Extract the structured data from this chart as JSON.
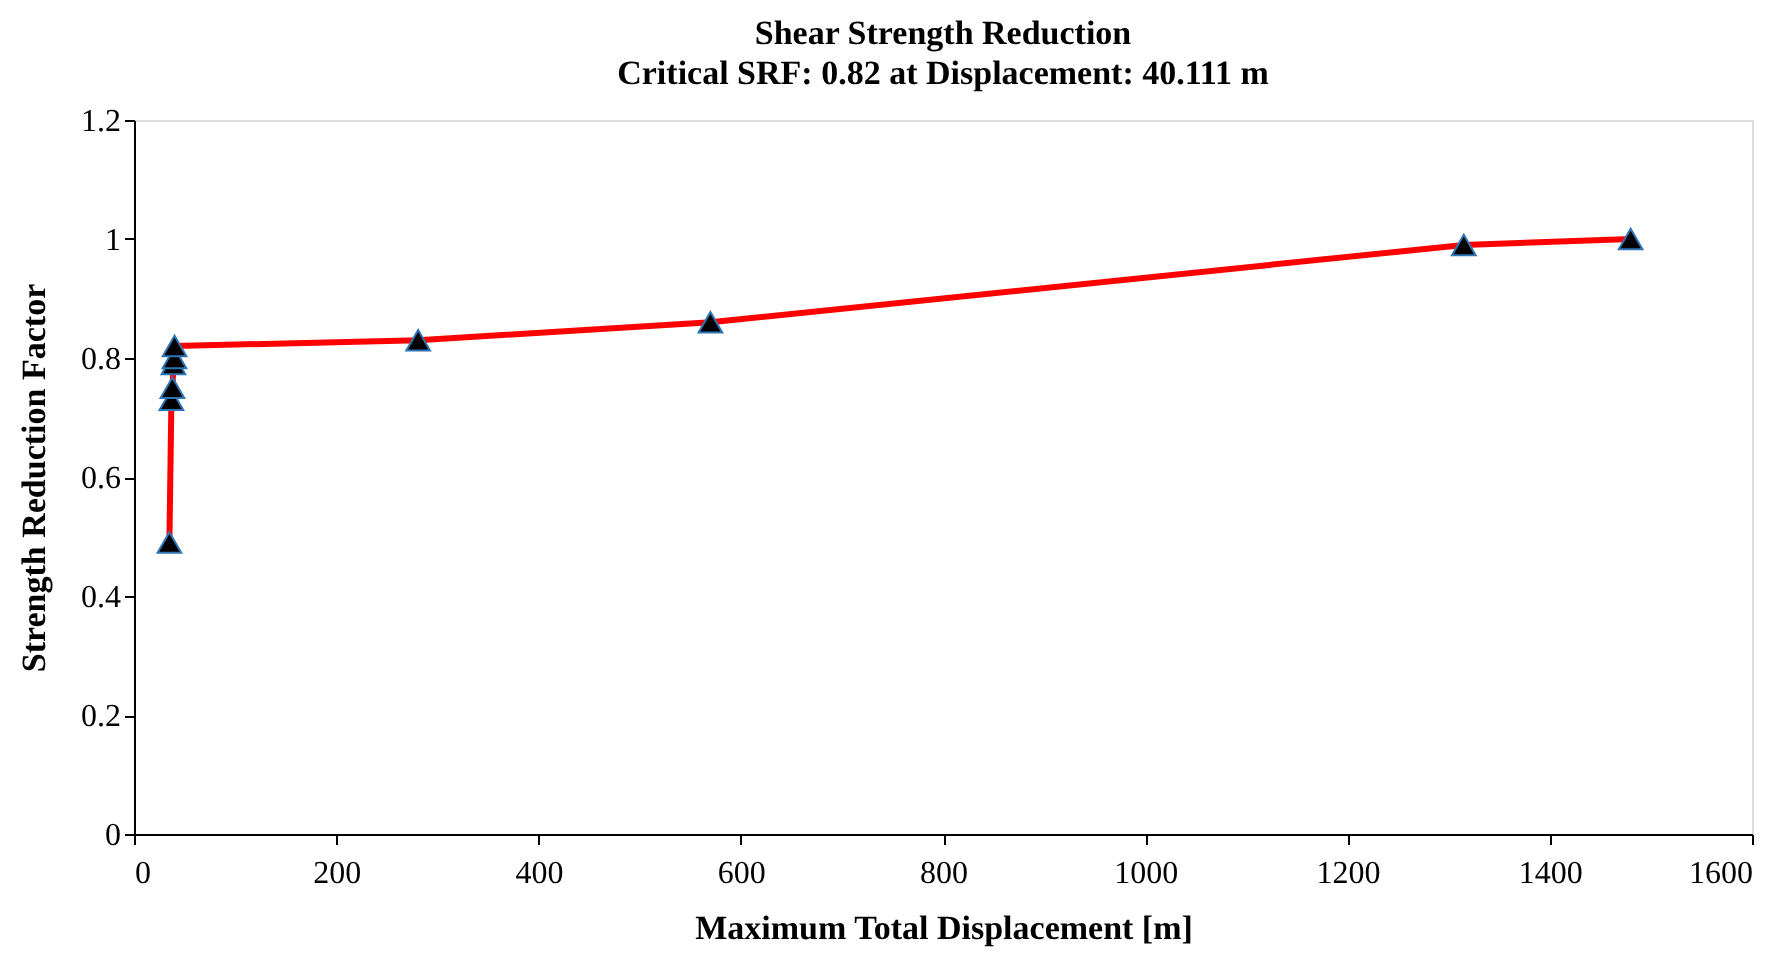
{
  "chart_data": {
    "type": "line",
    "title": "Shear Strength Reduction",
    "subtitle": "Critical SRF: 0.82 at Displacement: 40.111 m",
    "xlabel": "Maximum Total Displacement [m]",
    "ylabel": "Strength Reduction Factor",
    "x": [
      35,
      37,
      38,
      39,
      40,
      40.111,
      281,
      570,
      1315,
      1480
    ],
    "series": [
      {
        "color": "#ff0000",
        "values": [
          0.49,
          0.73,
          0.75,
          0.79,
          0.8,
          0.82,
          0.83,
          0.86,
          0.99,
          1.0
        ]
      }
    ],
    "marker": "triangle",
    "line_style": "solid",
    "grid": false,
    "xlim": [
      0,
      1600
    ],
    "xticks": [
      0,
      200,
      400,
      600,
      800,
      1000,
      1200,
      1400,
      1600
    ],
    "ylim": [
      0,
      1.2
    ],
    "yticks": [
      0,
      {
        "value": 0.2,
        "label": "0.2"
      },
      {
        "value": 0.4,
        "label": "0.4"
      },
      {
        "value": 0.6,
        "label": "0.6"
      },
      {
        "value": 0.8,
        "label": "0.8"
      },
      1,
      {
        "value": 1.2,
        "label": "1.2"
      }
    ]
  }
}
